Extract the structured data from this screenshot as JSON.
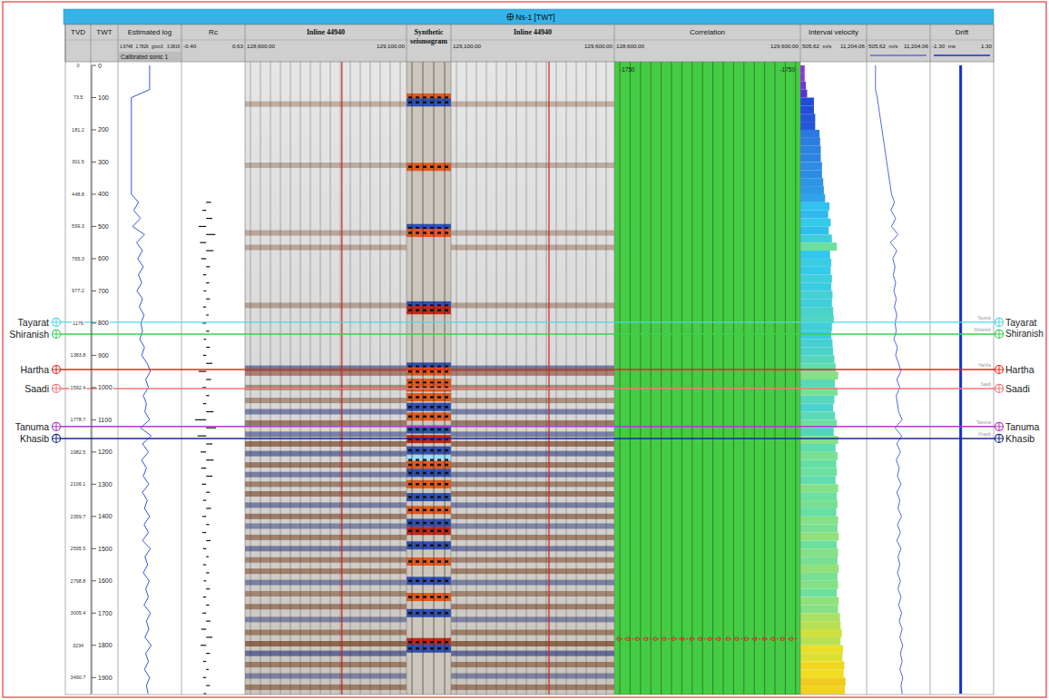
{
  "chart_data": {
    "type": "well_tie",
    "title": "Ns-1 [TWT]",
    "header": {
      "tvd": "TVD",
      "twt": "TWT"
    },
    "ylim": [
      0,
      1950
    ],
    "yticks": [
      0,
      100,
      200,
      300,
      400,
      500,
      600,
      700,
      800,
      900,
      1000,
      1100,
      1200,
      1300,
      1400,
      1500,
      1600,
      1700,
      1800,
      1900
    ],
    "tvd_labels": [
      0,
      73.5,
      181.2,
      301.5,
      448.8,
      599.3,
      765.3,
      977.2,
      1176,
      1383.8,
      1592.4,
      1778.7,
      1982.5,
      2106.1,
      2359.7,
      2595.5,
      2798.8,
      3005.4,
      3234,
      3490.7
    ],
    "log_twt": [
      0,
      25,
      50,
      75,
      100,
      125,
      150,
      175,
      200,
      225,
      250,
      275,
      300,
      325,
      350,
      375,
      400,
      425,
      450,
      475,
      500,
      525,
      550,
      575,
      600,
      625,
      650,
      675,
      700,
      725,
      750,
      775,
      800,
      825,
      850,
      875,
      900,
      925,
      950,
      975,
      1000,
      1025,
      1050,
      1075,
      1100,
      1125,
      1150,
      1175,
      1200,
      1225,
      1250,
      1275,
      1300,
      1325,
      1350,
      1375,
      1400,
      1425,
      1450,
      1475,
      1500,
      1525,
      1550,
      1575,
      1600,
      1625,
      1650,
      1675,
      1700,
      1725,
      1750,
      1775,
      1800,
      1825,
      1850,
      1875,
      1900,
      1925,
      1950
    ],
    "tracks": {
      "estimated_log": {
        "title": "Estimated log",
        "subtitle": "Calibrated sonic 1",
        "current_value": 1.9748,
        "unit": "g/cm3",
        "xlim": [
          1.7826,
          3.3819
        ],
        "values": [
          2.58,
          2.58,
          2.58,
          2.58,
          2.12,
          2.12,
          2.12,
          2.12,
          2.12,
          2.12,
          2.12,
          2.12,
          2.12,
          2.12,
          2.12,
          2.12,
          2.12,
          2.3,
          2.18,
          2.35,
          2.15,
          2.45,
          2.25,
          2.4,
          2.28,
          2.42,
          2.3,
          2.38,
          2.26,
          2.4,
          2.32,
          2.44,
          2.36,
          2.4,
          2.33,
          2.45,
          2.38,
          2.52,
          2.6,
          2.48,
          2.55,
          2.42,
          2.5,
          2.46,
          2.58,
          2.35,
          2.62,
          2.4,
          2.55,
          2.38,
          2.5,
          2.42,
          2.56,
          2.4,
          2.52,
          2.45,
          2.58,
          2.44,
          2.55,
          2.4,
          2.6,
          2.46,
          2.53,
          2.42,
          2.57,
          2.48,
          2.55,
          2.44,
          2.6,
          2.5,
          2.56,
          2.46,
          2.62,
          2.48,
          2.55,
          2.45,
          2.58,
          2.5,
          2.54
        ]
      },
      "rc": {
        "title": "Rc",
        "xlim": [
          {
            "value": -0.4,
            "label": "-0.40"
          },
          {
            "value": 0.63,
            "label": "0.63"
          }
        ],
        "values": [
          0,
          0,
          0,
          0,
          0,
          0,
          0,
          0,
          0,
          0,
          0,
          0,
          0,
          0,
          0,
          0,
          0,
          0.08,
          -0.06,
          0.1,
          -0.12,
          0.15,
          -0.1,
          0.12,
          -0.08,
          0.06,
          -0.05,
          0.05,
          -0.04,
          0.06,
          -0.05,
          0.04,
          -0.06,
          0.05,
          -0.04,
          0.06,
          -0.05,
          0.1,
          -0.12,
          0.08,
          -0.06,
          0.05,
          -0.05,
          0.12,
          -0.18,
          0.16,
          -0.14,
          0.1,
          -0.09,
          0.12,
          -0.08,
          0.1,
          -0.07,
          0.06,
          -0.05,
          0.08,
          -0.06,
          0.05,
          -0.06,
          0.07,
          -0.05,
          0.04,
          -0.05,
          0.05,
          -0.04,
          0.06,
          -0.05,
          0.05,
          -0.06,
          0.07,
          -0.08,
          0.1,
          -0.09,
          0.06,
          -0.05,
          0.04,
          -0.05,
          0.06,
          -0.04
        ]
      },
      "inline_left": {
        "title": "Inline 44940",
        "xlim": [
          {
            "value": 128600,
            "label": "128,600.00"
          },
          {
            "value": 129100,
            "label": "129,100.00"
          }
        ],
        "marker_positions": [
          128900
        ]
      },
      "synthetic": {
        "title": "Synthetic seismogram",
        "twt": [
          100,
          115,
          315,
          505,
          520,
          745,
          760,
          935,
          950,
          985,
          1000,
          1030,
          1060,
          1090,
          1130,
          1160,
          1195,
          1225,
          1240,
          1265,
          1300,
          1340,
          1380,
          1420,
          1445,
          1490,
          1540,
          1600,
          1650,
          1700,
          1790,
          1810
        ],
        "amplitude": [
          0.6,
          -0.5,
          0.5,
          -0.5,
          0.6,
          -0.5,
          0.7,
          -0.6,
          0.5,
          0.6,
          0.5,
          0.6,
          -0.5,
          0.6,
          -0.5,
          0.7,
          -0.6,
          -0.9,
          0.6,
          -0.5,
          0.5,
          -0.6,
          0.5,
          -0.5,
          0.7,
          -0.5,
          0.5,
          -0.5,
          0.5,
          -0.5,
          0.7,
          -0.6
        ]
      },
      "inline_right": {
        "title": "Inline 44940",
        "xlim": [
          {
            "value": 129100,
            "label": "129,100.00"
          },
          {
            "value": 129600,
            "label": "129,600.00"
          }
        ],
        "marker_positions": [
          129400
        ]
      },
      "correlation": {
        "title": "Correlation",
        "xlim": [
          {
            "value": 128600,
            "label": "128,600.00"
          },
          {
            "value": 129600,
            "label": "129,600.00"
          }
        ],
        "lag_labels": [
          -1750,
          -1750
        ],
        "marker_twt": 1780
      },
      "interval_velocity": {
        "title": "Interval velocity",
        "unit": "m/s",
        "xlim": [
          505.62,
          {
            "value": 11204.06,
            "label": "11,204.06"
          }
        ],
        "values": [
          1200,
          1200,
          1400,
          1600,
          2700,
          2700,
          2900,
          2900,
          3600,
          3700,
          3800,
          3800,
          4000,
          4000,
          4200,
          4300,
          4500,
          5200,
          5000,
          5400,
          5100,
          5600,
          6400,
          5300,
          5500,
          5400,
          5600,
          5500,
          5700,
          5600,
          5800,
          5900,
          5600,
          5500,
          5700,
          5800,
          6000,
          6200,
          6600,
          6100,
          6500,
          6000,
          5800,
          6100,
          6400,
          5900,
          6600,
          6200,
          6500,
          6300,
          6400,
          6200,
          6600,
          6400,
          6500,
          6300,
          6600,
          6500,
          6700,
          6400,
          6600,
          6500,
          6700,
          6500,
          6600,
          6400,
          6700,
          6600,
          6900,
          7000,
          7200,
          7000,
          7400,
          7300,
          7600,
          7500,
          7800,
          7700,
          7900
        ]
      },
      "velocity_log": {
        "unit": "m/s",
        "xlim": [
          505.62,
          {
            "value": 11204.06,
            "label": "11,204.06"
          }
        ],
        "values": [
          2000,
          2000,
          2000,
          2000,
          2300,
          2500,
          2700,
          2900,
          3100,
          3300,
          3500,
          3700,
          3900,
          4100,
          4300,
          4500,
          4700,
          5200,
          4600,
          5400,
          4700,
          5800,
          4500,
          5600,
          4900,
          5300,
          5000,
          5400,
          5100,
          5500,
          5200,
          5600,
          5300,
          5500,
          5100,
          5700,
          5400,
          5900,
          6300,
          5600,
          6100,
          5500,
          5700,
          5900,
          6500,
          5300,
          6400,
          5600,
          6200,
          5500,
          6000,
          5700,
          6300,
          5600,
          6100,
          5800,
          6400,
          5700,
          6200,
          5600,
          6300,
          5800,
          6100,
          5700,
          6200,
          5800,
          6300,
          5900,
          6400,
          6000,
          6500,
          6100,
          6600,
          6200,
          6500,
          6100,
          6600,
          6300,
          6500
        ]
      },
      "drift": {
        "title": "Drift",
        "unit": "ms",
        "xlim": [
          {
            "value": -1.3,
            "label": "-1.30"
          },
          {
            "value": 1.3,
            "label": "1.30"
          }
        ],
        "twt": [
          0,
          1950
        ],
        "values": [
          -0.05,
          -0.05
        ]
      }
    },
    "seismic_events": {
      "twt": [
        120,
        310,
        520,
        565,
        745,
        940,
        955,
        1000,
        1040,
        1075,
        1110,
        1145,
        1175,
        1205,
        1240,
        1270,
        1300,
        1330,
        1365,
        1400,
        1430,
        1465,
        1500,
        1535,
        1570,
        1605,
        1640,
        1680,
        1720,
        1760,
        1795,
        1825,
        1860,
        1895,
        1930
      ],
      "amplitude": [
        0.1,
        0.1,
        0.15,
        0.15,
        0.2,
        -0.6,
        0.5,
        0.4,
        0.35,
        -0.5,
        0.6,
        -0.5,
        0.7,
        -0.6,
        0.6,
        -0.5,
        0.5,
        0.6,
        -0.5,
        0.55,
        -0.4,
        0.5,
        -0.5,
        0.45,
        0.5,
        -0.45,
        0.4,
        0.5,
        -0.4,
        0.5,
        0.8,
        -0.7,
        0.5,
        -0.4,
        0.5
      ]
    },
    "formation_tops": [
      {
        "name": "Tayarat",
        "twt": 797,
        "color": "#4dd9e6"
      },
      {
        "name": "Shiranish",
        "twt": 834,
        "color": "#3ccf4e"
      },
      {
        "name": "Hartha",
        "twt": 944,
        "color": "#e8241c"
      },
      {
        "name": "Saadi",
        "twt": 1003,
        "color": "#f07878"
      },
      {
        "name": "Tanuma",
        "twt": 1121,
        "color": "#b23cc8"
      },
      {
        "name": "Khasib",
        "twt": 1158,
        "color": "#1a2a8a"
      }
    ]
  }
}
